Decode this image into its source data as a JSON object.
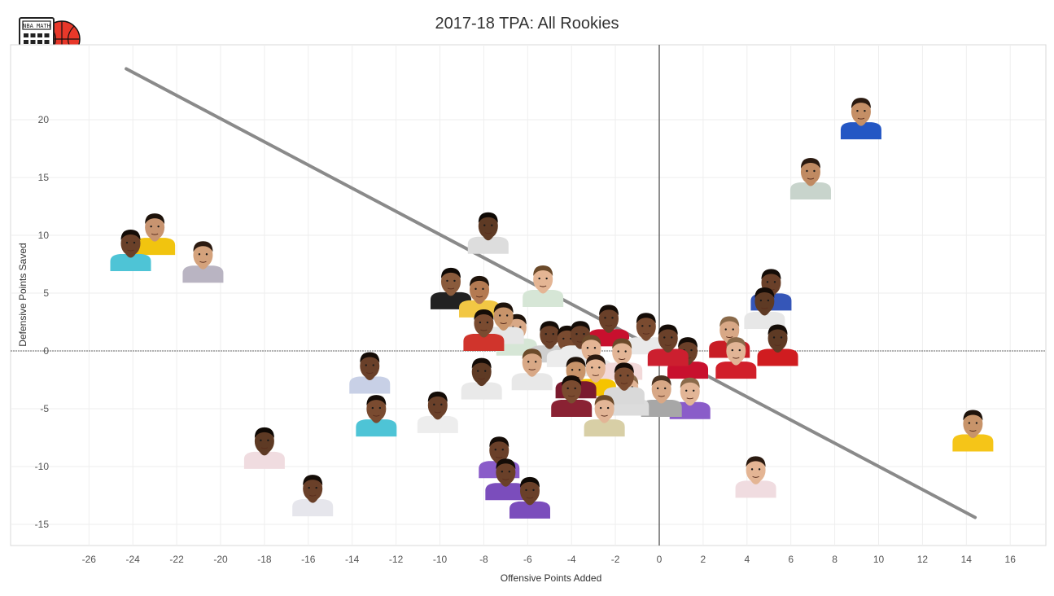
{
  "logo": {
    "text": "NBA MATH",
    "icon": "calculator-basketball-icon",
    "colors": {
      "ball": "#e8382a",
      "calculator": "#222222"
    }
  },
  "chart_data": {
    "type": "scatter",
    "title": "2017-18 TPA: All Rookies",
    "xlabel": "Offensive Points Added",
    "ylabel": "Defensive Points Saved",
    "xlim": [
      -27.5,
      17.5
    ],
    "ylim": [
      -16.5,
      26.5
    ],
    "xticks": [
      -26,
      -24,
      -22,
      -20,
      -18,
      -16,
      -14,
      -12,
      -10,
      -8,
      -6,
      -4,
      -2,
      0,
      2,
      4,
      6,
      8,
      10,
      12,
      14,
      16
    ],
    "yticks": [
      -15,
      -10,
      -5,
      0,
      5,
      10,
      15,
      20
    ],
    "grid": true,
    "reference_lines": {
      "x": 0,
      "y": 0
    },
    "trend_line": {
      "x": [
        -24.3,
        14.4
      ],
      "y": [
        24.4,
        -14.4
      ],
      "color": "#8a8a8a"
    },
    "marker": "player-headshot",
    "points": [
      {
        "x": 9.2,
        "y": 20.2,
        "jersey": "#2457c4",
        "skin": "#c58f66",
        "hair": "#2b1a10"
      },
      {
        "x": 6.9,
        "y": 15.0,
        "jersey": "#c8d4cc",
        "skin": "#c08a62",
        "hair": "#2b1a10"
      },
      {
        "x": -23.0,
        "y": 10.2,
        "jersey": "#f1c40f",
        "skin": "#c89470",
        "hair": "#1e130b"
      },
      {
        "x": -24.1,
        "y": 8.8,
        "jersey": "#4ec4d6",
        "skin": "#6a4029",
        "hair": "#140c07"
      },
      {
        "x": -20.8,
        "y": 7.8,
        "jersey": "#b9b4c2",
        "skin": "#d4a27c",
        "hair": "#2b1a10"
      },
      {
        "x": -7.8,
        "y": 10.3,
        "jersey": "#dddddd",
        "skin": "#5e3a24",
        "hair": "#0f0905"
      },
      {
        "x": -5.3,
        "y": 5.7,
        "jersey": "#d6e6d6",
        "skin": "#e4b594",
        "hair": "#6b4a2a"
      },
      {
        "x": -9.5,
        "y": 5.5,
        "jersey": "#222222",
        "skin": "#8a5b3c",
        "hair": "#0f0905"
      },
      {
        "x": -8.2,
        "y": 4.8,
        "jersey": "#f2c744",
        "skin": "#b47a52",
        "hair": "#1e130b"
      },
      {
        "x": 5.1,
        "y": 5.4,
        "jersey": "#3556b8",
        "skin": "#6a4029",
        "hair": "#140c07"
      },
      {
        "x": 4.8,
        "y": 3.8,
        "jersey": "#e7e7e7",
        "skin": "#5e3a24",
        "hair": "#140c07"
      },
      {
        "x": -2.3,
        "y": 2.3,
        "jersey": "#c8102e",
        "skin": "#6a4029",
        "hair": "#140c07"
      },
      {
        "x": -0.6,
        "y": 1.6,
        "jersey": "#e9e9e9",
        "skin": "#7a4b30",
        "hair": "#140c07"
      },
      {
        "x": 5.4,
        "y": 0.6,
        "jersey": "#d01c20",
        "skin": "#5e3a24",
        "hair": "#140c07"
      },
      {
        "x": 3.2,
        "y": 1.3,
        "jersey": "#c81d25",
        "skin": "#d8a886",
        "hair": "#8a6a4a"
      },
      {
        "x": 3.5,
        "y": -0.5,
        "jersey": "#d11f2a",
        "skin": "#e2b596",
        "hair": "#8a6a4a"
      },
      {
        "x": 1.3,
        "y": -0.5,
        "jersey": "#c8102e",
        "skin": "#6a4029",
        "hair": "#140c07"
      },
      {
        "x": 0.4,
        "y": 0.6,
        "jersey": "#cc1f2f",
        "skin": "#6a4029",
        "hair": "#140c07"
      },
      {
        "x": 1.4,
        "y": -4.0,
        "jersey": "#8a5cc9",
        "skin": "#e2b596",
        "hair": "#8a6a4a"
      },
      {
        "x": 0.1,
        "y": -3.8,
        "jersey": "#a7a7a7",
        "skin": "#d8a886",
        "hair": "#4a3322"
      },
      {
        "x": 14.3,
        "y": -6.8,
        "jersey": "#f5c518",
        "skin": "#c8946a",
        "hair": "#1e130b"
      },
      {
        "x": 4.4,
        "y": -10.8,
        "jersey": "#f0dce0",
        "skin": "#e4b594",
        "hair": "#2b1a10"
      },
      {
        "x": -6.5,
        "y": 1.5,
        "jersey": "#d6e6d6",
        "skin": "#d8a886",
        "hair": "#1e130b"
      },
      {
        "x": -7.1,
        "y": 2.5,
        "jersey": "#e6e6e6",
        "skin": "#c8946a",
        "hair": "#1e130b"
      },
      {
        "x": -8.0,
        "y": 1.9,
        "jersey": "#d0342c",
        "skin": "#7a4b30",
        "hair": "#140c07"
      },
      {
        "x": -5.0,
        "y": 0.9,
        "jersey": "#cfcfcf",
        "skin": "#6a4029",
        "hair": "#140c07"
      },
      {
        "x": -4.2,
        "y": 0.5,
        "jersey": "#ececec",
        "skin": "#7a4b30",
        "hair": "#140c07"
      },
      {
        "x": -3.6,
        "y": 0.9,
        "jersey": "#ececec",
        "skin": "#6a4029",
        "hair": "#140c07"
      },
      {
        "x": -3.1,
        "y": -0.3,
        "jersey": "#e8e8e8",
        "skin": "#e4b594",
        "hair": "#6b4a2a"
      },
      {
        "x": -1.7,
        "y": -0.6,
        "jersey": "#f2d9d9",
        "skin": "#e2b596",
        "hair": "#6b4a2a"
      },
      {
        "x": -2.9,
        "y": -2.0,
        "jersey": "#f5c400",
        "skin": "#e4b594",
        "hair": "#2b1a10"
      },
      {
        "x": -3.8,
        "y": -2.2,
        "jersey": "#7a1a2e",
        "skin": "#c8946a",
        "hair": "#1e130b"
      },
      {
        "x": -5.8,
        "y": -1.5,
        "jersey": "#e8e8e8",
        "skin": "#d8a886",
        "hair": "#6b4a2a"
      },
      {
        "x": -8.1,
        "y": -2.3,
        "jersey": "#e9e9e9",
        "skin": "#5e3a24",
        "hair": "#140c07"
      },
      {
        "x": -4.0,
        "y": -3.8,
        "jersey": "#8a2233",
        "skin": "#7a4b30",
        "hair": "#140c07"
      },
      {
        "x": -1.4,
        "y": -3.7,
        "jersey": "#dcdcdc",
        "skin": "#e2b596",
        "hair": "#8a6a4a"
      },
      {
        "x": -1.6,
        "y": -2.7,
        "jersey": "#d9d9d9",
        "skin": "#7a4b30",
        "hair": "#140c07"
      },
      {
        "x": -2.5,
        "y": -5.5,
        "jersey": "#d8cfa6",
        "skin": "#e2b596",
        "hair": "#6b4a2a"
      },
      {
        "x": -10.1,
        "y": -5.2,
        "jersey": "#ededed",
        "skin": "#6a4029",
        "hair": "#140c07"
      },
      {
        "x": -13.2,
        "y": -1.8,
        "jersey": "#c8d0e6",
        "skin": "#6a4029",
        "hair": "#140c07"
      },
      {
        "x": -12.9,
        "y": -5.5,
        "jersey": "#4ec4d6",
        "skin": "#7a4b30",
        "hair": "#140c07"
      },
      {
        "x": -18.0,
        "y": -8.3,
        "jersey": "#f0dce0",
        "skin": "#5e3a24",
        "hair": "#0f0905"
      },
      {
        "x": -15.8,
        "y": -12.4,
        "jersey": "#e6e6ec",
        "skin": "#6a4029",
        "hair": "#140c07"
      },
      {
        "x": -7.3,
        "y": -9.1,
        "jersey": "#8a5cc9",
        "skin": "#6a4029",
        "hair": "#140c07"
      },
      {
        "x": -7.0,
        "y": -11.0,
        "jersey": "#7b4dbc",
        "skin": "#6a4029",
        "hair": "#140c07"
      },
      {
        "x": -5.9,
        "y": -12.6,
        "jersey": "#7b4dbc",
        "skin": "#6a4029",
        "hair": "#0f0905"
      }
    ]
  }
}
